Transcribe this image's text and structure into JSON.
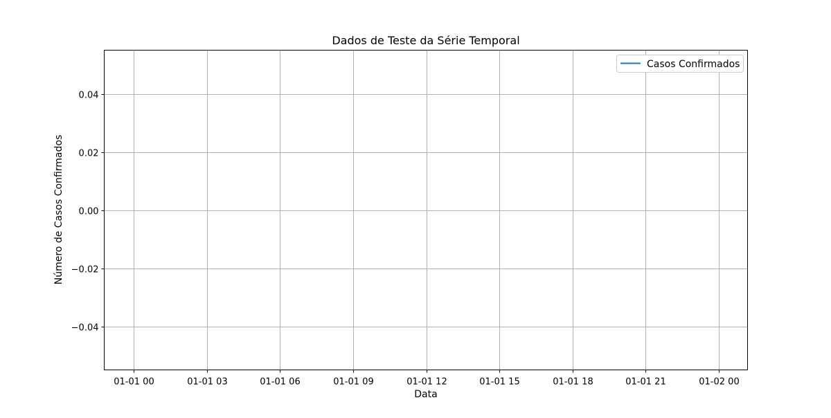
{
  "chart_data": {
    "type": "line",
    "title": "Dados de Teste da Série Temporal",
    "xlabel": "Data",
    "ylabel": "Número de Casos Confirmados",
    "x_ticks": [
      "01-01 00",
      "01-01 03",
      "01-01 06",
      "01-01 09",
      "01-01 12",
      "01-01 15",
      "01-01 18",
      "01-01 21",
      "01-02 00"
    ],
    "y_ticks": [
      "0.04",
      "0.02",
      "0.00",
      "−0.02",
      "−0.04"
    ],
    "y_tick_values": [
      0.04,
      0.02,
      0.0,
      -0.02,
      -0.04
    ],
    "ylim": [
      -0.055,
      0.055
    ],
    "grid": true,
    "legend": {
      "placement": "upper right",
      "entries": [
        "Casos Confirmados"
      ]
    },
    "series": [
      {
        "name": "Casos Confirmados",
        "color": "#1f77b4",
        "x": [],
        "values": []
      }
    ]
  }
}
